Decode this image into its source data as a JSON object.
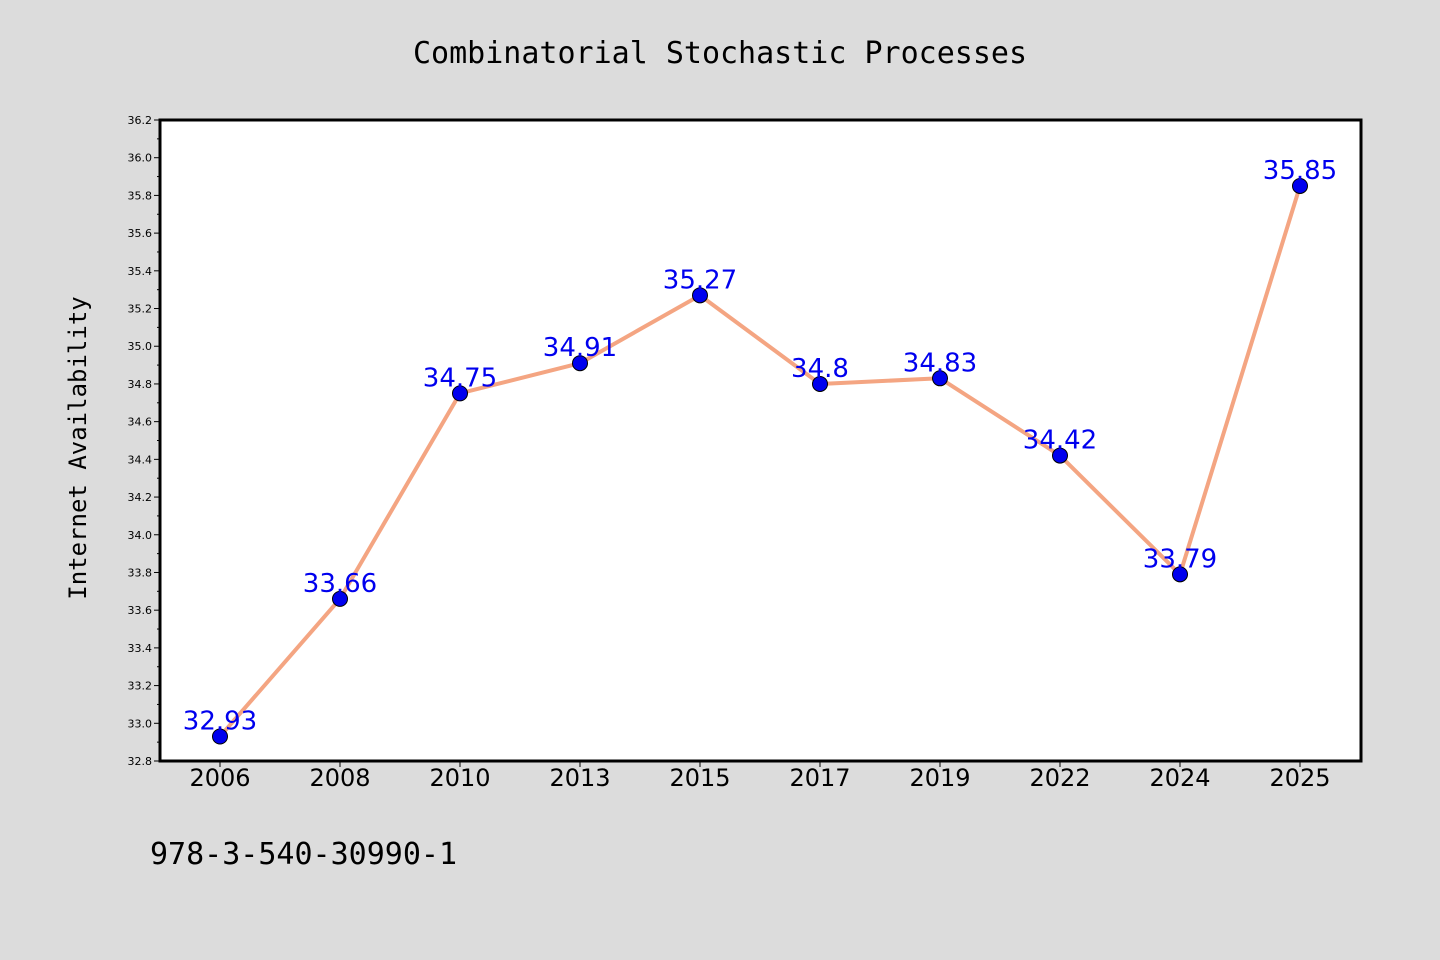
{
  "chart_data": {
    "type": "line",
    "title": "Combinatorial Stochastic Processes",
    "xlabel": "",
    "ylabel": "Internet Availability",
    "categories": [
      "2006",
      "2008",
      "2010",
      "2013",
      "2015",
      "2017",
      "2019",
      "2022",
      "2024",
      "2025"
    ],
    "series": [
      {
        "values": [
          32.93,
          33.66,
          34.75,
          34.91,
          35.27,
          34.8,
          34.83,
          34.42,
          33.79,
          35.85
        ],
        "labels": [
          "32.93",
          "33.66",
          "34.75",
          "34.91",
          "35.27",
          "34.8",
          "34.83",
          "34.42",
          "33.79",
          "35.85"
        ]
      }
    ],
    "ylim": [
      32.8,
      36.2
    ],
    "yticks": [
      "32.8",
      "33.0",
      "33.2",
      "33.4",
      "33.6",
      "33.8",
      "34.0",
      "34.2",
      "34.4",
      "34.6",
      "34.8",
      "35.0",
      "35.2",
      "35.4",
      "35.6",
      "35.8",
      "36.0",
      "36.2"
    ],
    "grid": false,
    "legend": "none",
    "colors": {
      "line": "#f4a582",
      "marker": "#0000ee",
      "data_label": "#0000ee",
      "background": "#dcdcdc",
      "plot_area": "#ffffff"
    }
  },
  "footer_text": "978-3-540-30990-1"
}
